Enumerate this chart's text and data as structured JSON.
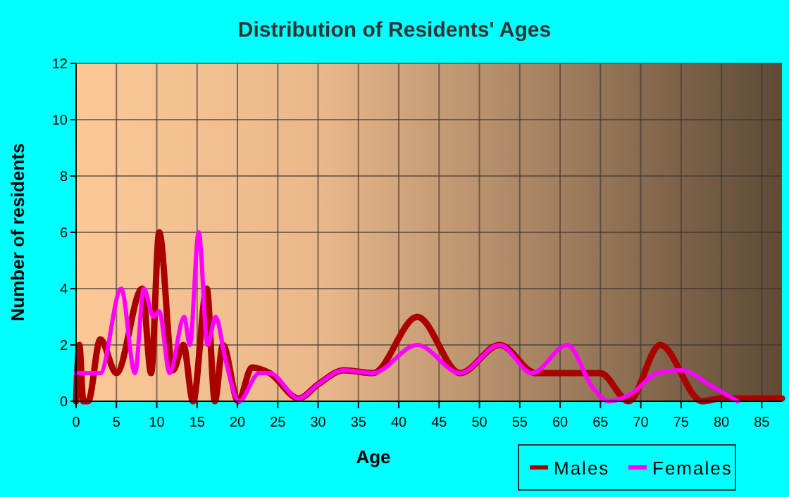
{
  "chart_data": {
    "type": "line",
    "title": "Distribution of Residents' Ages",
    "xlabel": "Age",
    "ylabel": "Number of residents",
    "xlim": [
      0,
      87.5
    ],
    "xticks": [
      0,
      5,
      10,
      15,
      20,
      25,
      30,
      35,
      40,
      45,
      50,
      55,
      60,
      65,
      70,
      75,
      80,
      85
    ],
    "ylim": [
      0,
      12
    ],
    "yticks": [
      0,
      2,
      4,
      6,
      8,
      10,
      12
    ],
    "grid": true,
    "legend": "bottom right",
    "series": [
      {
        "name": "Males",
        "color": "#aa0000",
        "x": [
          0,
          0.4,
          0.9,
          1.5,
          3,
          5,
          8.2,
          9.3,
          10.3,
          12,
          13.3,
          14.5,
          16.2,
          17.2,
          18.2,
          20.1,
          21.8,
          24,
          27.6,
          30,
          33.2,
          36.8,
          42.3,
          47.6,
          52.5,
          57,
          60,
          65,
          68.5,
          72.4,
          77.6,
          80,
          87.5
        ],
        "values": [
          0,
          2,
          0,
          0,
          2.2,
          1,
          4,
          1,
          6,
          1.1,
          2,
          0,
          4,
          0,
          2,
          0,
          1.2,
          1,
          0.1,
          0.6,
          1.1,
          1,
          3,
          1,
          2,
          1,
          1,
          1,
          0,
          2,
          0,
          0.1,
          0.1
        ]
      },
      {
        "name": "Females",
        "color": "#ff00ff",
        "x": [
          0,
          1,
          3,
          5.6,
          7.3,
          8.4,
          9.6,
          10.3,
          11.6,
          13.4,
          14.1,
          15.2,
          16.3,
          17.3,
          18.5,
          20.2,
          22.7,
          24,
          27.6,
          30,
          33.2,
          36.8,
          42.3,
          47.6,
          52.5,
          56.5,
          60.9,
          64,
          66,
          69,
          72,
          75,
          79,
          82
        ],
        "values": [
          1,
          1,
          1,
          4,
          1,
          4,
          3,
          3.2,
          1,
          3,
          2,
          6,
          2,
          3,
          1.5,
          0,
          1,
          1,
          0.1,
          0.6,
          1.1,
          1,
          2,
          1,
          2,
          1,
          2,
          0.5,
          0,
          0.3,
          1,
          1.1,
          0.5,
          0
        ]
      }
    ]
  }
}
